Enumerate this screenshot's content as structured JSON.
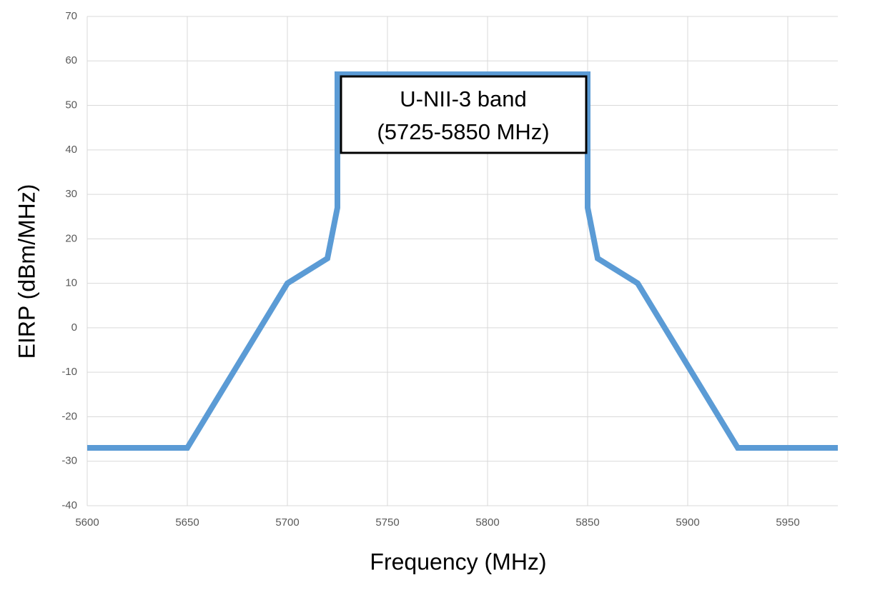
{
  "chart_data": {
    "type": "line",
    "x_label": "Frequency (MHz)",
    "y_label": "EIRP (dBm/MHz)",
    "annotation": [
      "U-NII-3 band",
      "(5725-5850 MHz)"
    ],
    "x": [
      5600,
      5650,
      5700,
      5720,
      5725,
      5725,
      5850,
      5850,
      5855,
      5875,
      5925,
      5975
    ],
    "values": [
      -27,
      -27,
      10,
      15.6,
      27,
      57,
      57,
      27,
      15.6,
      10,
      -27,
      -27
    ],
    "color": "#5b9bd5",
    "xlim": [
      5600,
      5975
    ],
    "xticks": [
      5600,
      5650,
      5700,
      5750,
      5800,
      5850,
      5900,
      5950
    ],
    "ylim": [
      -40,
      70
    ],
    "yticks": [
      -40,
      -30,
      -20,
      -10,
      0,
      10,
      20,
      30,
      40,
      50,
      60,
      70
    ],
    "grid": true
  }
}
